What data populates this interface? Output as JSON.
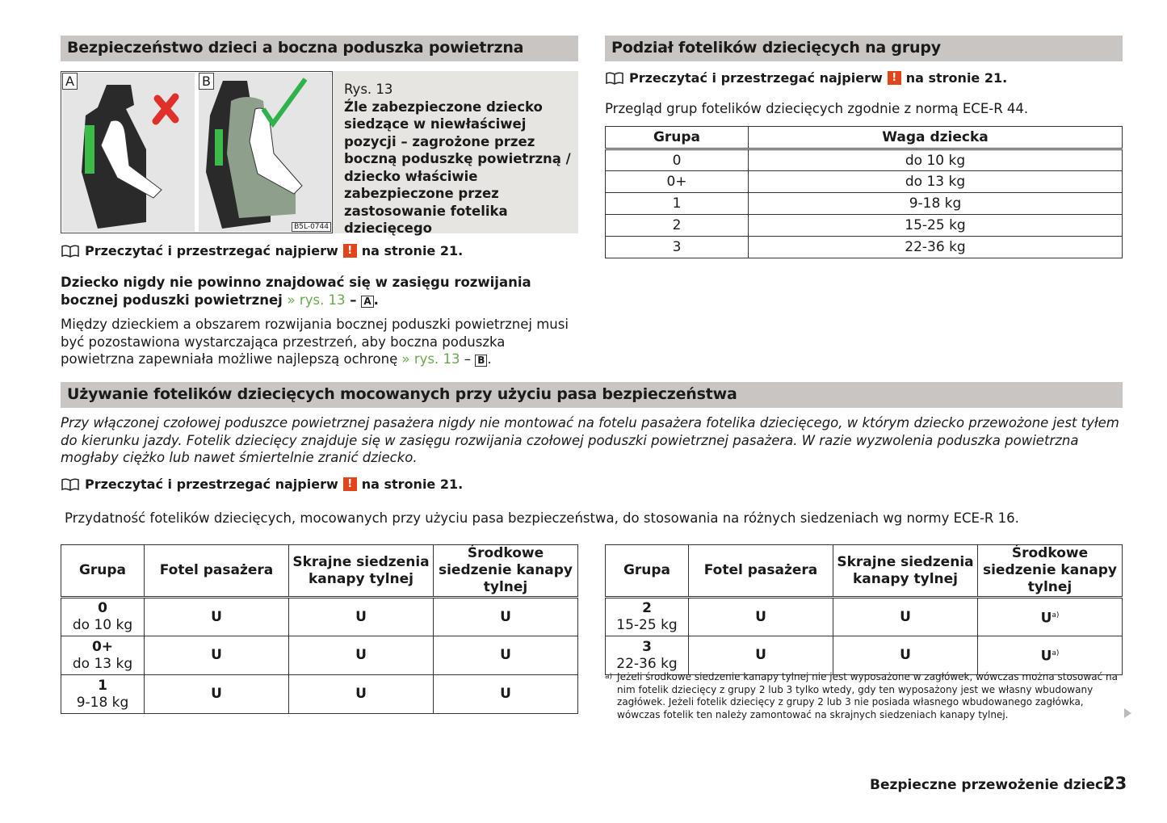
{
  "left_section": {
    "title": "Bezpieczeństwo dzieci a boczna poduszka powietrzna",
    "figure": {
      "label_a": "A",
      "label_b": "B",
      "code": "B5L-0744",
      "caption_ref": "Rys. 13",
      "caption": "Źle zabezpieczone dziecko siedzące w niewłaściwej pozycji – zagrożone przez boczną poduszkę powietrzną / dziecko właściwie zabezpieczone przez zastosowanie fotelika dziecięcego"
    },
    "note": {
      "text": "Przeczytać i przestrzegać najpierw",
      "icon": "!",
      "suffix": "na stronie  21."
    },
    "bold_para": "Dziecko nigdy nie powinno znajdować się w zasięgu rozwijania bocznej poduszki powietrznej",
    "bold_link": "» rys. 13",
    "bold_box": "A",
    "para": "Między dzieckiem a obszarem rozwijania bocznej poduszki powietrznej musi być pozostawiona wystarczająca przestrzeń, aby boczna poduszka powietrzna zapewniała możliwe najlepszą ochronę",
    "para_link": "» rys. 13",
    "para_box": "B"
  },
  "right_section": {
    "title": "Podział fotelików dziecięcych na grupy",
    "note": {
      "text": "Przeczytać i przestrzegać najpierw",
      "icon": "!",
      "suffix": "na stronie  21."
    },
    "intro": "Przegląd grup fotelików dziecięcych zgodnie z normą ECE-R 44.",
    "table": {
      "headers": [
        "Grupa",
        "Waga dziecka"
      ],
      "rows": [
        [
          "0",
          "do 10 kg"
        ],
        [
          "0+",
          "do 13 kg"
        ],
        [
          "1",
          "9-18 kg"
        ],
        [
          "2",
          "15-25 kg"
        ],
        [
          "3",
          "22-36 kg"
        ]
      ]
    }
  },
  "belt_section": {
    "title": "Używanie fotelików dziecięcych mocowanych przy użyciu pasa bezpieczeństwa",
    "warning": "Przy włączonej czołowej poduszce powietrznej pasażera nigdy nie montować na fotelu pasażera fotelika dziecięcego, w którym dziecko przewożone jest tyłem do kierunku jazdy. Fotelik dziecięcy znajduje się w zasięgu rozwijania czołowej poduszki powietrznej pasażera. W razie wyzwolenia poduszka powietrzna mogłaby ciężko lub nawet śmiertelnie zranić dziecko.",
    "note": {
      "text": "Przeczytać i przestrzegać najpierw",
      "icon": "!",
      "suffix": "na stronie  21."
    },
    "intro": "Przydatność fotelików dziecięcych, mocowanych przy użyciu pasa bezpieczeństwa, do stosowania na różnych siedzeniach wg normy ECE-R 16.",
    "headers": [
      "Grupa",
      "Fotel pasażera",
      "Skrajne siedzenia kanapy tylnej",
      "Środkowe siedzenie kanapy tylnej"
    ],
    "table_left": [
      {
        "group": "0",
        "weight": "do 10 kg",
        "cells": [
          "U",
          "U",
          "U"
        ]
      },
      {
        "group": "0+",
        "weight": "do 13 kg",
        "cells": [
          "U",
          "U",
          "U"
        ]
      },
      {
        "group": "1",
        "weight": "9-18 kg",
        "cells": [
          "U",
          "U",
          "U"
        ]
      }
    ],
    "table_right": [
      {
        "group": "2",
        "weight": "15-25 kg",
        "cells": [
          "U",
          "U",
          "U"
        ],
        "sup": "a)"
      },
      {
        "group": "3",
        "weight": "22-36 kg",
        "cells": [
          "U",
          "U",
          "U"
        ],
        "sup": "a)"
      }
    ],
    "footnote_mark": "a)",
    "footnote": "Jeżeli środkowe siedzenie kanapy tylnej nie jest wyposażone w zagłówek, wówczas można stosować na nim fotelik dziecięcy z grupy 2 lub 3 tylko wtedy, gdy ten wyposażony jest we własny wbudowany zagłówek. Jeżeli fotelik dziecięcy z grupy 2 lub 3 nie posiada własnego wbudowanego zagłówka, wówczas fotelik ten należy zamontować na skrajnych siedzeniach kanapy tylnej."
  },
  "footer": {
    "chapter": "Bezpieczne przewożenie dzieci",
    "page": "23"
  },
  "colors": {
    "header_bar": "#c9c5c2",
    "link": "#6aa84f",
    "warning": "#e0451b"
  }
}
